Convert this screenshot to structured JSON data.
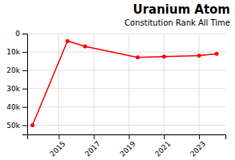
{
  "chart_data": {
    "type": "line",
    "title": "Uranium Atom",
    "subtitle": "Constitution Rank All Time",
    "x": [
      2013.5,
      2015.5,
      2016.5,
      2019.5,
      2021.0,
      2023.0,
      2024.0
    ],
    "values": [
      50000,
      4000,
      7000,
      13000,
      12500,
      12000,
      11000
    ],
    "color": "#ff0000",
    "marker": "circle",
    "xlim": [
      2013.2,
      2024.5
    ],
    "ylim": [
      55000,
      0
    ],
    "xticks": [
      2015,
      2017,
      2019,
      2021,
      2023
    ],
    "yticks": [
      0,
      {
        "value": 10000,
        "label": "10k"
      },
      {
        "value": 20000,
        "label": "20k"
      },
      {
        "value": 30000,
        "label": "30k"
      },
      {
        "value": 40000,
        "label": "40k"
      },
      {
        "value": 50000,
        "label": "50k"
      }
    ],
    "grid": true
  }
}
